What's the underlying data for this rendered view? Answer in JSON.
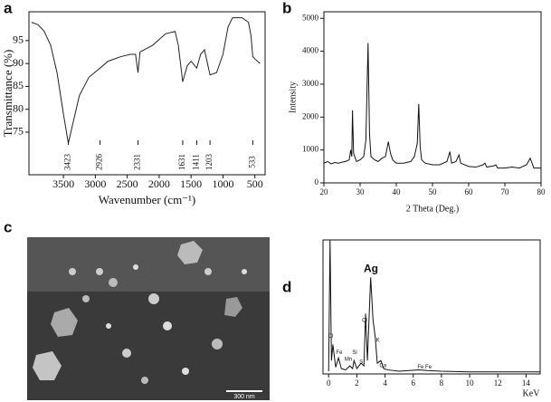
{
  "panel_labels": [
    "a",
    "b",
    "c",
    "d"
  ],
  "image": {
    "scale_bar": "300 nm"
  },
  "chart_data": [
    {
      "type": "line",
      "ylabel": "Transmittance (%)",
      "xlabel": "Wavenumber (cm⁻¹)",
      "color": "#222222",
      "x": [
        4000,
        3900,
        3800,
        3700,
        3600,
        3500,
        3423,
        3350,
        3250,
        3100,
        2926,
        2800,
        2600,
        2450,
        2370,
        2331,
        2300,
        2100,
        1900,
        1750,
        1700,
        1631,
        1560,
        1500,
        1411,
        1350,
        1290,
        1203,
        1100,
        1000,
        920,
        850,
        700,
        600,
        560,
        533,
        500,
        420
      ],
      "values": [
        99,
        98.5,
        97,
        94,
        88,
        79,
        72.6,
        77,
        83,
        87,
        89,
        90.5,
        91.5,
        92,
        92,
        88,
        92.5,
        94,
        96.5,
        97,
        94,
        86,
        89.5,
        90.5,
        89,
        92,
        93,
        87.5,
        88,
        92,
        98,
        100,
        100,
        99,
        96,
        91.5,
        91,
        90
      ],
      "xlim": [
        4040,
        340
      ],
      "ylim": [
        65.7,
        101.3
      ],
      "xticks": [
        3500,
        3000,
        2500,
        2000,
        1500,
        1000,
        500
      ],
      "yticks": [
        75,
        80,
        85,
        90,
        95
      ],
      "peaks": [
        3423,
        2926,
        2331,
        1631,
        1411,
        1203,
        533
      ]
    },
    {
      "type": "line",
      "ylabel": "Intensity",
      "xlabel": "2 Theta (Deg.)",
      "color": "#111111",
      "x": [
        20,
        21,
        22,
        23,
        24,
        25,
        26,
        27,
        27.4,
        27.7,
        27.9,
        28.2,
        29,
        30,
        31,
        31.6,
        32.2,
        32.6,
        33,
        34,
        35,
        36,
        37,
        37.8,
        38.4,
        39,
        40,
        42,
        44,
        45,
        45.8,
        46.2,
        46.6,
        47,
        48,
        50,
        52,
        54,
        54.8,
        55.3,
        56.5,
        57.3,
        57.8,
        60,
        62,
        64,
        64.5,
        65,
        67,
        67.5,
        68,
        70,
        72,
        74,
        76,
        77,
        77.5,
        78,
        80
      ],
      "values": [
        600,
        650,
        580,
        620,
        600,
        630,
        650,
        700,
        1000,
        800,
        2200,
        900,
        650,
        700,
        800,
        1300,
        4250,
        1500,
        800,
        700,
        650,
        750,
        800,
        1250,
        900,
        700,
        600,
        600,
        650,
        800,
        1200,
        2400,
        1100,
        700,
        600,
        550,
        550,
        650,
        950,
        600,
        650,
        850,
        600,
        500,
        480,
        550,
        600,
        480,
        520,
        550,
        450,
        450,
        480,
        450,
        550,
        750,
        600,
        450,
        450
      ],
      "xlim": [
        20,
        80
      ],
      "ylim": [
        0,
        5200
      ],
      "xticks": [
        20,
        30,
        40,
        50,
        60,
        70,
        80
      ],
      "yticks": [
        0,
        1000,
        2000,
        3000,
        4000,
        5000
      ]
    },
    {
      "type": "line",
      "xlabel": "KeV",
      "color": "#111111",
      "x": [
        0,
        0.1,
        0.2,
        0.3,
        0.5,
        0.7,
        0.9,
        1.2,
        1.5,
        1.7,
        1.8,
        2.0,
        2.3,
        2.5,
        2.62,
        2.75,
        2.98,
        3.15,
        3.3,
        3.45,
        3.7,
        3.9,
        4.2,
        5,
        6.4,
        7,
        8,
        10,
        12,
        14,
        15
      ],
      "values": [
        2,
        100,
        10,
        22,
        5,
        12,
        4,
        3,
        6,
        4,
        10,
        4,
        8,
        6,
        45,
        10,
        72,
        40,
        28,
        8,
        10,
        4,
        3,
        2,
        3,
        2.5,
        2,
        1.5,
        1.5,
        1.5,
        1.5
      ],
      "xlim": [
        -0.4,
        15
      ],
      "ylim": [
        0,
        100
      ],
      "xticks": [
        0,
        2,
        4,
        6,
        8,
        10,
        12,
        14
      ],
      "annotations": [
        {
          "x": 0.15,
          "y": 28,
          "text": "Cl"
        },
        {
          "x": 0.75,
          "y": 16,
          "text": "Fe"
        },
        {
          "x": 1.4,
          "y": 11,
          "text": "Mn"
        },
        {
          "x": 1.85,
          "y": 16,
          "text": "Si"
        },
        {
          "x": 2.3,
          "y": 9,
          "text": "S"
        },
        {
          "x": 2.55,
          "y": 40,
          "text": "Cl"
        },
        {
          "x": 3.5,
          "y": 25,
          "text": "K"
        },
        {
          "x": 3.85,
          "y": 6,
          "text": "Ca"
        },
        {
          "x": 3.0,
          "y": 78,
          "text": "Ag"
        },
        {
          "x": 6.8,
          "y": 5,
          "text": "Fe Fe"
        }
      ]
    }
  ]
}
